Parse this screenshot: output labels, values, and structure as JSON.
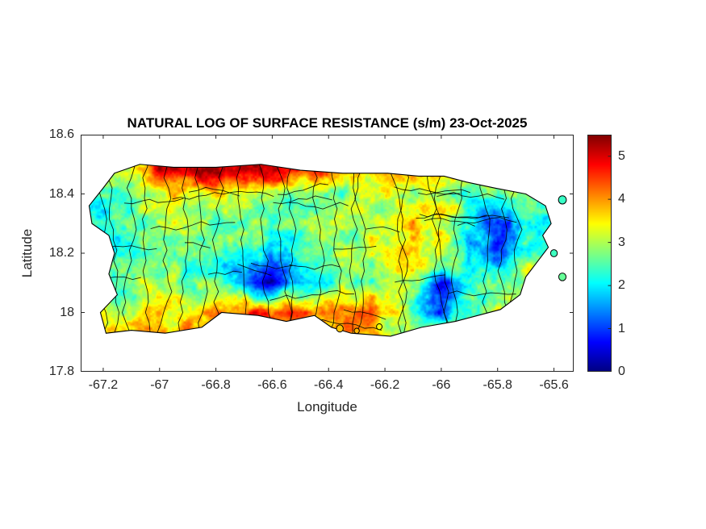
{
  "chart_data": {
    "type": "heatmap",
    "title": "NATURAL LOG OF SURFACE RESISTANCE (s/m) 23-Oct-2025",
    "xlabel": "Longitude",
    "ylabel": "Latitude",
    "region": "Puerto Rico with municipal boundaries",
    "xlim": [
      -67.28,
      -65.53
    ],
    "ylim": [
      17.8,
      18.6
    ],
    "xticks": [
      -67.2,
      -67.0,
      -66.8,
      -66.6,
      -66.4,
      -66.2,
      -66.0,
      -65.8,
      -65.6
    ],
    "xtick_labels": [
      "-67.2",
      "-67",
      "-66.8",
      "-66.6",
      "-66.4",
      "-66.2",
      "-66",
      "-65.8",
      "-65.6"
    ],
    "yticks": [
      18.6,
      18.4,
      18.2,
      18.0,
      17.8
    ],
    "ytick_labels": [
      "18.6",
      "18.4",
      "18.2",
      "18",
      "17.8"
    ],
    "colorbar": {
      "colormap": "jet",
      "min": 0,
      "max": 5.5,
      "ticks": [
        0,
        1,
        2,
        3,
        4,
        5
      ],
      "tick_labels": [
        "0",
        "1",
        "2",
        "3",
        "4",
        "5"
      ]
    },
    "grid": {
      "lons": [
        -67.2,
        -67.1,
        -67.0,
        -66.9,
        -66.8,
        -66.7,
        -66.6,
        -66.5,
        -66.4,
        -66.3,
        -66.2,
        -66.1,
        -66.0,
        -65.9,
        -65.8,
        -65.7,
        -65.6
      ],
      "lats": [
        18.48,
        18.4,
        18.3,
        18.2,
        18.1,
        18.0,
        17.93
      ],
      "values": [
        [
          2.8,
          3.2,
          4.8,
          5.0,
          5.3,
          4.9,
          5.2,
          4.6,
          4.2,
          3.6,
          4.0,
          3.4,
          4.2,
          3.2,
          2.9,
          null,
          null
        ],
        [
          2.6,
          2.6,
          3.2,
          3.4,
          3.3,
          3.0,
          3.2,
          2.8,
          2.2,
          2.9,
          3.1,
          3.2,
          3.1,
          2.6,
          2.2,
          2.5,
          null
        ],
        [
          2.3,
          2.4,
          2.8,
          2.9,
          2.7,
          2.7,
          2.6,
          2.7,
          2.9,
          3.1,
          3.2,
          3.6,
          3.4,
          2.2,
          0.4,
          2.0,
          2.5
        ],
        [
          2.1,
          2.6,
          2.6,
          2.5,
          2.3,
          2.2,
          2.2,
          2.4,
          2.7,
          2.9,
          3.1,
          3.9,
          3.3,
          2.0,
          1.2,
          2.6,
          2.4
        ],
        [
          2.5,
          2.8,
          2.8,
          2.6,
          2.4,
          1.2,
          0.6,
          1.6,
          2.4,
          2.8,
          3.0,
          3.2,
          0.8,
          2.5,
          2.9,
          3.0,
          null
        ],
        [
          3.1,
          3.1,
          3.5,
          3.4,
          4.1,
          4.5,
          4.6,
          4.3,
          3.9,
          4.1,
          3.5,
          2.6,
          1.2,
          2.6,
          3.1,
          null,
          null
        ],
        [
          null,
          3.4,
          3.8,
          4.1,
          4.2,
          4.0,
          4.3,
          4.0,
          3.6,
          3.8,
          3.2,
          3.0,
          2.8,
          2.6,
          null,
          null,
          null
        ]
      ]
    },
    "outline": [
      [
        -67.16,
        18.47
      ],
      [
        -67.07,
        18.5
      ],
      [
        -66.95,
        18.49
      ],
      [
        -66.8,
        18.49
      ],
      [
        -66.64,
        18.5
      ],
      [
        -66.5,
        18.48
      ],
      [
        -66.35,
        18.47
      ],
      [
        -66.19,
        18.47
      ],
      [
        -66.08,
        18.46
      ],
      [
        -65.99,
        18.46
      ],
      [
        -65.91,
        18.44
      ],
      [
        -65.81,
        18.42
      ],
      [
        -65.7,
        18.4
      ],
      [
        -65.63,
        18.36
      ],
      [
        -65.61,
        18.3
      ],
      [
        -65.64,
        18.26
      ],
      [
        -65.62,
        18.22
      ],
      [
        -65.66,
        18.17
      ],
      [
        -65.7,
        18.12
      ],
      [
        -65.72,
        18.06
      ],
      [
        -65.79,
        18.01
      ],
      [
        -65.87,
        17.99
      ],
      [
        -65.95,
        17.97
      ],
      [
        -66.07,
        17.95
      ],
      [
        -66.18,
        17.92
      ],
      [
        -66.32,
        17.93
      ],
      [
        -66.39,
        17.95
      ],
      [
        -66.45,
        17.99
      ],
      [
        -66.55,
        17.97
      ],
      [
        -66.65,
        17.99
      ],
      [
        -66.78,
        18.0
      ],
      [
        -66.85,
        17.95
      ],
      [
        -66.98,
        17.93
      ],
      [
        -67.1,
        17.94
      ],
      [
        -67.19,
        17.93
      ],
      [
        -67.21,
        18.0
      ],
      [
        -67.15,
        18.06
      ],
      [
        -67.18,
        18.13
      ],
      [
        -67.16,
        18.2
      ],
      [
        -67.18,
        18.26
      ],
      [
        -67.24,
        18.3
      ],
      [
        -67.25,
        18.36
      ],
      [
        -67.2,
        18.42
      ]
    ],
    "islets": [
      {
        "lon": -66.36,
        "lat": 17.946,
        "r": 0.012
      },
      {
        "lon": -66.3,
        "lat": 17.938,
        "r": 0.009
      },
      {
        "lon": -66.22,
        "lat": 17.952,
        "r": 0.01
      },
      {
        "lon": -65.6,
        "lat": 18.2,
        "r": 0.012
      },
      {
        "lon": -65.57,
        "lat": 18.38,
        "r": 0.014
      },
      {
        "lon": -65.57,
        "lat": 18.12,
        "r": 0.013
      }
    ]
  },
  "colors": {
    "axis": "#262626",
    "title": "#000000",
    "boundary": "#000000",
    "background": "#ffffff"
  }
}
